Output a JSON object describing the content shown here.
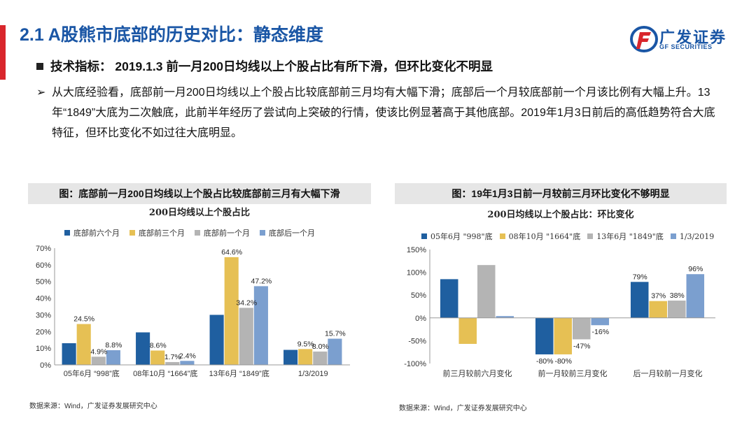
{
  "header": {
    "title": "2.1  A股熊市底部的历史对比：静态维度",
    "logo_cn": "广发证券",
    "logo_en": "GF SECURITIES"
  },
  "colors": {
    "blue": "#1f5fa0",
    "yellow": "#e6c054",
    "gray": "#b4b4b4",
    "light_blue": "#7b9fcf",
    "accent_red": "#d9262c",
    "title_blue": "#1a56a5"
  },
  "tech": {
    "label": "技术指标：  2019.1.3  前一月200日均线以上个股占比有所下滑，但环比变化不明显"
  },
  "bullet": {
    "arrow": "➢",
    "text": "从大底经验看，底部前一月200日均线以上个股占比较底部前三月均有大幅下滑；底部后一个月较底部前一个月该比例有大幅上升。13年“1849”大底为二次触底，此前半年经历了尝试向上突破的行情，使该比例显著高于其他底部。2019年1月3日前后的高低趋势符合大底特征，但环比变化不如过往大底明显。"
  },
  "left_panel": {
    "heading": "图：底部前一月200日均线以上个股占比较底部前三月有大幅下滑",
    "source": "数据来源：Wind，广发证券发展研究中心"
  },
  "right_panel": {
    "heading": "图：19年1月3日前一月较前三月环比变化不够明显",
    "source": "数据来源：Wind，广发证券发展研究中心"
  },
  "chart_data": [
    {
      "type": "bar",
      "title": "200日均线以上个股占比",
      "categories": [
        "05年6月 “998”底",
        "08年10月 “1664”底",
        "13年6月 “1849”底",
        "1/3/2019"
      ],
      "series": [
        {
          "name": "底部前六个月",
          "values": [
            13,
            19.5,
            30,
            9
          ]
        },
        {
          "name": "底部前三个月",
          "values": [
            24.5,
            8.6,
            64.6,
            9.5
          ]
        },
        {
          "name": "底部前一个月",
          "values": [
            4.9,
            1.7,
            34.2,
            8.0
          ]
        },
        {
          "name": "底部后一个月",
          "values": [
            8.8,
            2.4,
            47.2,
            15.7
          ]
        }
      ],
      "data_labels": [
        {
          "series": 1,
          "category": 0,
          "text": "24.5%"
        },
        {
          "series": 2,
          "category": 0,
          "text": "4.9%"
        },
        {
          "series": 3,
          "category": 0,
          "text": "8.8%"
        },
        {
          "series": 1,
          "category": 1,
          "text": "8.6%"
        },
        {
          "series": 2,
          "category": 1,
          "text": "1.7%"
        },
        {
          "series": 3,
          "category": 1,
          "text": "2.4%"
        },
        {
          "series": 1,
          "category": 2,
          "text": "64.6%"
        },
        {
          "series": 2,
          "category": 2,
          "text": "34.2%"
        },
        {
          "series": 3,
          "category": 2,
          "text": "47.2%"
        },
        {
          "series": 1,
          "category": 3,
          "text": "9.5%"
        },
        {
          "series": 2,
          "category": 3,
          "text": "8.0%"
        },
        {
          "series": 3,
          "category": 3,
          "text": "15.7%"
        }
      ],
      "y_ticks": [
        "0%",
        "10%",
        "20%",
        "30%",
        "40%",
        "50%",
        "60%",
        "70%"
      ],
      "ylim": [
        0,
        70
      ],
      "legend_position": "top"
    },
    {
      "type": "bar",
      "title": "200日均线以上个股占比：环比变化",
      "categories": [
        "前三月较前六月变化",
        "前一月较前三月变化",
        "后一月较前一月变化"
      ],
      "series": [
        {
          "name": "05年6月 \"998\"底",
          "values": [
            85,
            -80,
            79
          ]
        },
        {
          "name": "08年10月 \"1664\"底",
          "values": [
            -57,
            -80,
            37
          ]
        },
        {
          "name": "13年6月 \"1849\"底",
          "values": [
            116,
            -47,
            38
          ]
        },
        {
          "name": "1/3/2019",
          "values": [
            4,
            -16,
            96
          ]
        }
      ],
      "data_labels": [
        {
          "series": 0,
          "category": 1,
          "text": "-80%"
        },
        {
          "series": 1,
          "category": 1,
          "text": "-80%"
        },
        {
          "series": 2,
          "category": 1,
          "text": "-47%"
        },
        {
          "series": 3,
          "category": 1,
          "text": "-16%"
        },
        {
          "series": 0,
          "category": 2,
          "text": "79%"
        },
        {
          "series": 1,
          "category": 2,
          "text": "37%"
        },
        {
          "series": 2,
          "category": 2,
          "text": "38%"
        },
        {
          "series": 3,
          "category": 2,
          "text": "96%"
        }
      ],
      "y_ticks": [
        "-100%",
        "-50%",
        "0%",
        "50%",
        "100%",
        "150%"
      ],
      "ylim": [
        -100,
        150
      ],
      "legend_position": "top"
    }
  ]
}
